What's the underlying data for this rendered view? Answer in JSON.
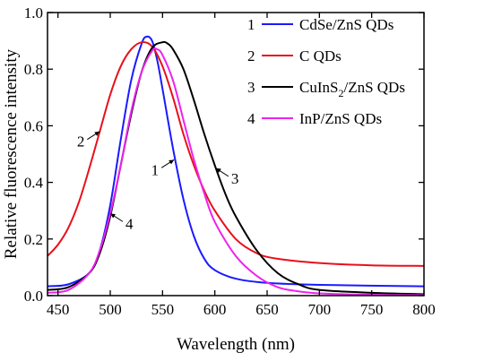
{
  "chart_data": {
    "type": "line",
    "xlabel": "Wavelength (nm)",
    "ylabel": "Relative fluorescence intensity",
    "xlim": [
      440,
      800
    ],
    "ylim": [
      0.0,
      1.0
    ],
    "x_ticks": [
      "450",
      "500",
      "550",
      "600",
      "650",
      "700",
      "750",
      "800"
    ],
    "y_ticks": [
      "0.0",
      "0.2",
      "0.4",
      "0.6",
      "0.8",
      "1.0"
    ],
    "x_tick_values": [
      450,
      500,
      550,
      600,
      650,
      700,
      750,
      800
    ],
    "y_tick_values": [
      0.0,
      0.2,
      0.4,
      0.6,
      0.8,
      1.0
    ],
    "grid": false,
    "legend_position": "top-right",
    "series": [
      {
        "id": "1",
        "legend_num": "1",
        "legend_name_main": "CdSe/ZnS QDs",
        "legend_sub": "",
        "legend_after": "",
        "color": "#1a1aff",
        "x": [
          440,
          460,
          480,
          490,
          500,
          510,
          520,
          530,
          535,
          540,
          545,
          550,
          560,
          570,
          580,
          590,
          600,
          620,
          650,
          700,
          800
        ],
        "y": [
          0.033,
          0.04,
          0.08,
          0.16,
          0.32,
          0.55,
          0.76,
          0.89,
          0.915,
          0.9,
          0.83,
          0.73,
          0.52,
          0.34,
          0.21,
          0.13,
          0.09,
          0.06,
          0.045,
          0.038,
          0.033
        ]
      },
      {
        "id": "2",
        "legend_num": "2",
        "legend_name_main": "C QDs",
        "legend_sub": "",
        "legend_after": "",
        "color": "#e8101a",
        "x": [
          440,
          450,
          460,
          470,
          480,
          490,
          500,
          510,
          520,
          530,
          540,
          550,
          560,
          570,
          580,
          590,
          600,
          620,
          640,
          660,
          700,
          750,
          800
        ],
        "y": [
          0.14,
          0.18,
          0.24,
          0.33,
          0.45,
          0.58,
          0.71,
          0.81,
          0.87,
          0.895,
          0.88,
          0.81,
          0.7,
          0.57,
          0.46,
          0.37,
          0.3,
          0.2,
          0.15,
          0.13,
          0.115,
          0.107,
          0.105
        ]
      },
      {
        "id": "3",
        "legend_num": "3",
        "legend_name_main": "CuInS",
        "legend_sub": "2",
        "legend_after": "/ZnS QDs",
        "color": "#000000",
        "x": [
          440,
          460,
          480,
          490,
          500,
          510,
          520,
          530,
          540,
          550,
          555,
          560,
          570,
          580,
          590,
          600,
          610,
          620,
          640,
          660,
          680,
          700,
          750,
          800
        ],
        "y": [
          0.02,
          0.03,
          0.08,
          0.15,
          0.28,
          0.46,
          0.64,
          0.79,
          0.875,
          0.895,
          0.89,
          0.87,
          0.8,
          0.69,
          0.57,
          0.46,
          0.36,
          0.28,
          0.16,
          0.08,
          0.04,
          0.02,
          0.01,
          0.005
        ]
      },
      {
        "id": "4",
        "legend_num": "4",
        "legend_name_main": "InP/ZnS QDs",
        "legend_sub": "",
        "legend_after": "",
        "color": "#ee22ee",
        "x": [
          440,
          460,
          480,
          490,
          500,
          510,
          520,
          530,
          540,
          545,
          550,
          560,
          570,
          580,
          590,
          600,
          620,
          640,
          660,
          680,
          700,
          750,
          800
        ],
        "y": [
          0.01,
          0.02,
          0.08,
          0.16,
          0.29,
          0.46,
          0.65,
          0.79,
          0.865,
          0.87,
          0.85,
          0.76,
          0.62,
          0.48,
          0.36,
          0.26,
          0.14,
          0.07,
          0.03,
          0.015,
          0.008,
          0.003,
          0.002
        ]
      }
    ],
    "annotations": [
      {
        "label": "1",
        "series": "1",
        "x": 561,
        "y": 0.48,
        "dir": "left"
      },
      {
        "label": "2",
        "series": "2",
        "x": 490,
        "y": 0.58,
        "dir": "left"
      },
      {
        "label": "3",
        "series": "3",
        "x": 601,
        "y": 0.45,
        "dir": "right"
      },
      {
        "label": "4",
        "series": "4",
        "x": 500,
        "y": 0.29,
        "dir": "right"
      }
    ]
  }
}
